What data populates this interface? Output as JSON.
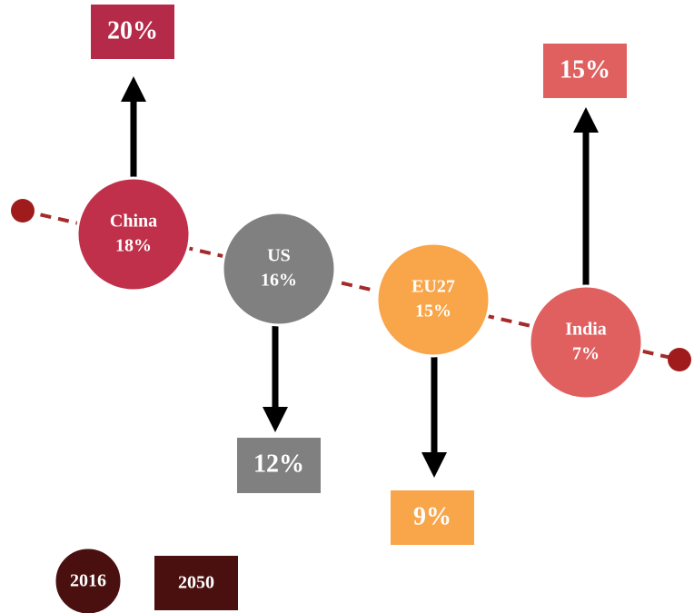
{
  "items": [
    {
      "label": "China",
      "share_2016": "18%",
      "share_2050": "20%"
    },
    {
      "label": "US",
      "share_2016": "16%",
      "share_2050": "12%"
    },
    {
      "label": "EU27",
      "share_2016": "15%",
      "share_2050": "9%"
    },
    {
      "label": "India",
      "share_2016": "7%",
      "share_2050": "15%"
    }
  ],
  "legend": {
    "circle": "2016",
    "box": "2050"
  }
}
